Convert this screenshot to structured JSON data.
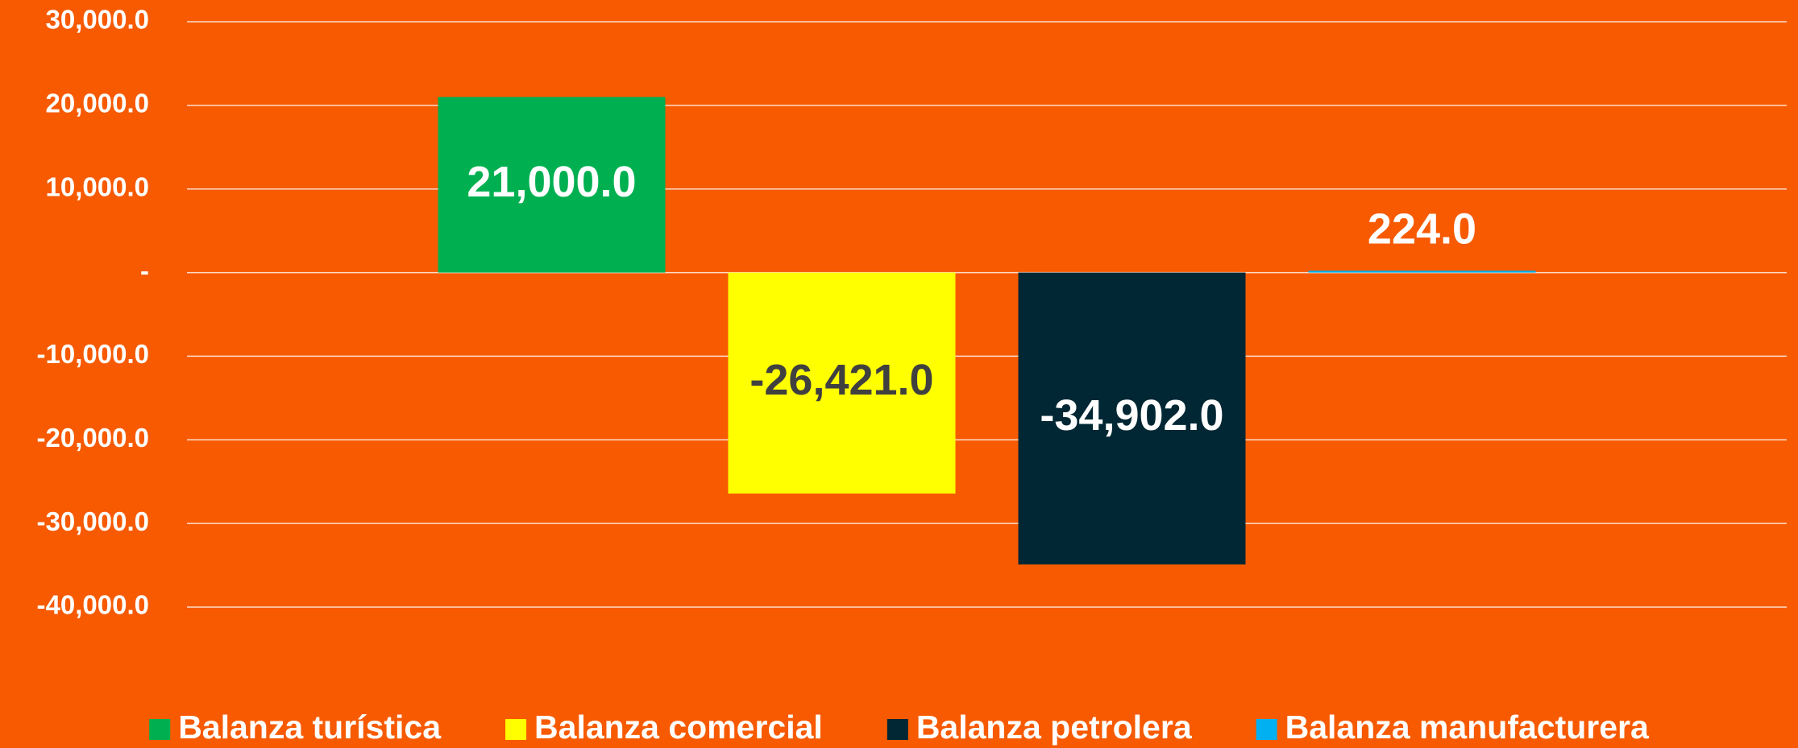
{
  "chart_data": {
    "type": "bar",
    "categories": [
      null
    ],
    "series": [
      {
        "name": "Balanza turística",
        "color": "#00b050",
        "label_color": "#ffffff",
        "values": [
          21000
        ],
        "value_labels": [
          "21,000.0"
        ]
      },
      {
        "name": "Balanza comercial",
        "color": "#ffff00",
        "label_color": "#404040",
        "values": [
          -26421
        ],
        "value_labels": [
          "-26,421.0"
        ]
      },
      {
        "name": "Balanza petrolera",
        "color": "#002733",
        "label_color": "#ffffff",
        "values": [
          -34902
        ],
        "value_labels": [
          "-34,902.0"
        ]
      },
      {
        "name": "Balanza manufacturera",
        "color": "#00b0f0",
        "label_color": "#ffffff",
        "values": [
          224
        ],
        "value_labels": [
          "224.0"
        ]
      }
    ],
    "ylim": [
      -40000,
      30000
    ],
    "yticks": [
      {
        "value": -40000,
        "label": "-40,000.0"
      },
      {
        "value": -30000,
        "label": "-30,000.0"
      },
      {
        "value": -20000,
        "label": "-20,000.0"
      },
      {
        "value": -10000,
        "label": "-10,000.0"
      },
      {
        "value": 0,
        "label": "-"
      },
      {
        "value": 10000,
        "label": "10,000.0"
      },
      {
        "value": 20000,
        "label": "20,000.0"
      },
      {
        "value": 30000,
        "label": "30,000.0"
      }
    ],
    "grid": true,
    "legend": "bottom"
  }
}
